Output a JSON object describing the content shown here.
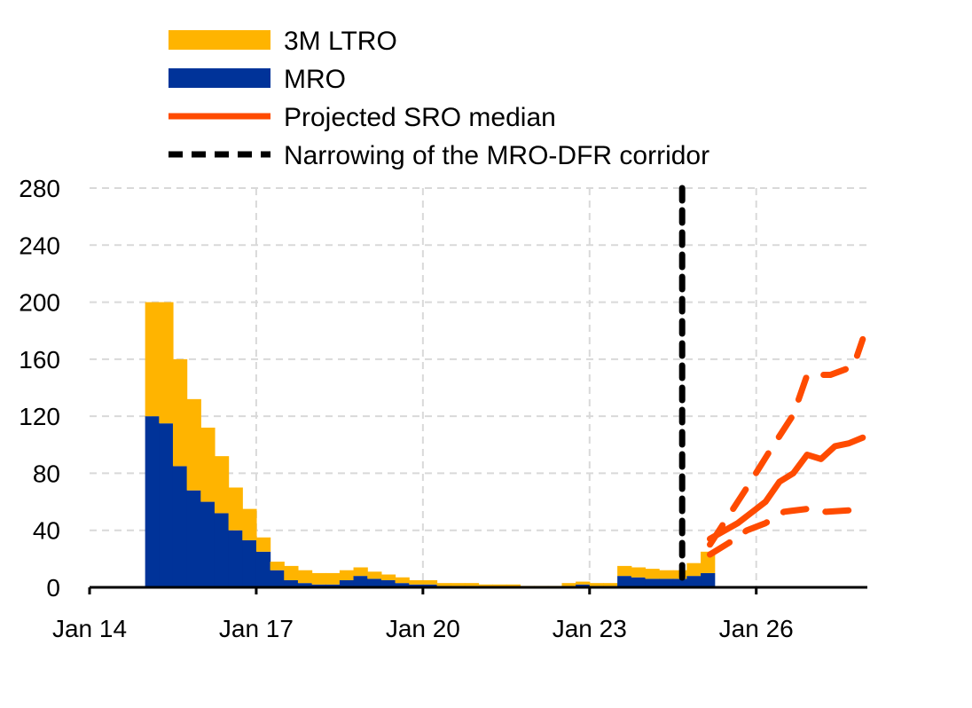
{
  "chart_data": {
    "type": "bar",
    "stacked": true,
    "title": "",
    "xlabel": "",
    "ylabel": "",
    "ylim": [
      0,
      280
    ],
    "xlim": [
      "2014-01",
      "2028-01"
    ],
    "yticks": [
      0,
      40,
      80,
      120,
      160,
      200,
      240,
      280
    ],
    "xticks": [
      {
        "date": "2014-01",
        "label": "Jan 14"
      },
      {
        "date": "2017-01",
        "label": "Jan 17"
      },
      {
        "date": "2020-01",
        "label": "Jan 20"
      },
      {
        "date": "2023-01",
        "label": "Jan 23"
      },
      {
        "date": "2026-01",
        "label": "Jan 26"
      }
    ],
    "grid": true,
    "legend_position": "top",
    "periods": [
      "2015-01",
      "2015-04",
      "2015-07",
      "2015-10",
      "2016-01",
      "2016-04",
      "2016-07",
      "2016-10",
      "2017-01",
      "2017-04",
      "2017-07",
      "2017-10",
      "2018-01",
      "2018-04",
      "2018-07",
      "2018-10",
      "2019-01",
      "2019-04",
      "2019-07",
      "2019-10",
      "2020-01",
      "2020-04",
      "2020-07",
      "2020-10",
      "2021-01",
      "2021-04",
      "2021-07",
      "2021-10",
      "2022-01",
      "2022-04",
      "2022-07",
      "2022-10",
      "2023-01",
      "2023-04",
      "2023-07",
      "2023-10",
      "2024-01",
      "2024-04",
      "2024-07",
      "2024-10",
      "2025-01"
    ],
    "series": [
      {
        "name": "MRO",
        "color": "#003399",
        "values": [
          120,
          115,
          85,
          68,
          60,
          52,
          40,
          33,
          25,
          12,
          5,
          3,
          2,
          2,
          5,
          8,
          6,
          5,
          3,
          2,
          2,
          1,
          1,
          1,
          0.5,
          0.5,
          0.5,
          0.3,
          0.2,
          0.2,
          1,
          2,
          1,
          1,
          8,
          7,
          6,
          6,
          6,
          8,
          10
        ]
      },
      {
        "name": "3M LTRO",
        "color": "#FFB400",
        "values": [
          80,
          85,
          75,
          64,
          52,
          40,
          30,
          22,
          10,
          6,
          10,
          9,
          8,
          8,
          7,
          6,
          5,
          4,
          4,
          3,
          3,
          2,
          2,
          2,
          1.5,
          1.5,
          1.5,
          0.7,
          0.8,
          0.8,
          2,
          2,
          2,
          2,
          7,
          7,
          7,
          6,
          6,
          9,
          15
        ]
      }
    ],
    "lines": [
      {
        "name": "Projected SRO median",
        "color": "#FF4B00",
        "style": "solid",
        "x": [
          "2025-03",
          "2025-09",
          "2026-01",
          "2026-03",
          "2026-06",
          "2026-09",
          "2026-12",
          "2027-03",
          "2027-06",
          "2027-09",
          "2027-12"
        ],
        "y": [
          34,
          45,
          55,
          60,
          74,
          80,
          93,
          90,
          99,
          101,
          105
        ]
      },
      {
        "name": "",
        "color": "#FF4B00",
        "style": "dashed",
        "x": [
          "2025-03",
          "2025-06",
          "2025-11",
          "2026-04",
          "2026-09",
          "2026-12",
          "2027-05",
          "2027-10",
          "2027-12"
        ],
        "y": [
          30,
          45,
          70,
          96,
          121,
          149,
          149,
          155,
          174
        ]
      },
      {
        "name": "",
        "color": "#FF4B00",
        "style": "dashed",
        "x": [
          "2025-03",
          "2025-07",
          "2025-11",
          "2026-03",
          "2026-07",
          "2026-12",
          "2027-04",
          "2027-09"
        ],
        "y": [
          23,
          31,
          40,
          45,
          53,
          55,
          53,
          54
        ]
      }
    ],
    "vline": {
      "name": "Narrowing of the MRO-DFR corridor",
      "date": "2024-09",
      "color": "#000000",
      "style": "dashed"
    },
    "legend": [
      {
        "label": "3M LTRO",
        "kind": "box",
        "color": "#FFB400"
      },
      {
        "label": "MRO",
        "kind": "box",
        "color": "#003399"
      },
      {
        "label": "Projected SRO median",
        "kind": "line",
        "color": "#FF4B00"
      },
      {
        "label": "Narrowing of the MRO-DFR corridor",
        "kind": "dash",
        "color": "#000000"
      }
    ]
  }
}
